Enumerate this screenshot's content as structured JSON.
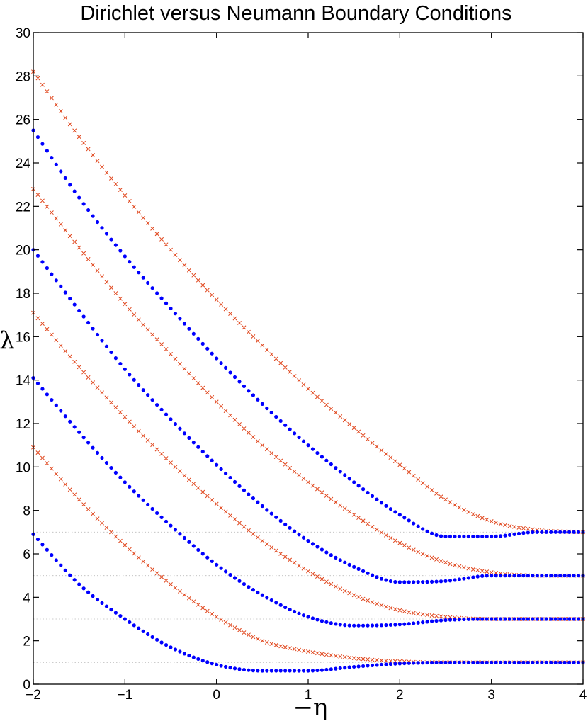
{
  "chart_data": {
    "type": "scatter",
    "title": "Dirichlet versus Neumann Boundary Conditions",
    "xlabel": "−η",
    "ylabel": "λ",
    "xlim": [
      -2,
      4
    ],
    "ylim": [
      0,
      30
    ],
    "xticks": [
      "−2",
      "−1",
      "0",
      "1",
      "2",
      "3",
      "4"
    ],
    "yticks": [
      "0",
      "2",
      "4",
      "6",
      "8",
      "10",
      "12",
      "14",
      "16",
      "18",
      "20",
      "22",
      "24",
      "26",
      "28",
      "30"
    ],
    "reference_lines": [
      1,
      3,
      5,
      7
    ],
    "series": [
      {
        "name": "Dirichlet",
        "marker": "dot",
        "color": "#0000ff",
        "curves": [
          {
            "x": [
              -2,
              -1.5,
              -1,
              -0.5,
              0,
              0.5,
              1,
              1.5,
              2,
              2.5,
              3,
              3.5,
              4
            ],
            "y": [
              6.9,
              4.6,
              3.0,
              1.7,
              0.9,
              0.62,
              0.62,
              0.8,
              0.95,
              1.0,
              1.0,
              1.0,
              1.0
            ]
          },
          {
            "x": [
              -2,
              -1.5,
              -1,
              -0.5,
              0,
              0.5,
              1,
              1.5,
              2,
              2.5,
              3,
              3.5,
              4
            ],
            "y": [
              14.1,
              11.6,
              9.3,
              7.3,
              5.5,
              4.1,
              3.1,
              2.7,
              2.75,
              2.95,
              3.0,
              3.0,
              3.0
            ]
          },
          {
            "x": [
              -2,
              -1.5,
              -1,
              -0.5,
              0,
              0.5,
              1,
              1.5,
              2,
              2.5,
              3,
              3.5,
              4
            ],
            "y": [
              20.0,
              17.2,
              14.5,
              12.2,
              10.1,
              8.2,
              6.6,
              5.4,
              4.7,
              4.75,
              5.0,
              5.0,
              5.0
            ]
          },
          {
            "x": [
              -2,
              -1.5,
              -1,
              -0.5,
              0,
              0.5,
              1,
              1.5,
              2,
              2.5,
              3,
              3.5,
              4
            ],
            "y": [
              25.5,
              22.4,
              19.7,
              17.3,
              15.0,
              12.9,
              11.0,
              9.3,
              7.8,
              6.8,
              6.8,
              7.0,
              7.0
            ]
          }
        ]
      },
      {
        "name": "Neumann",
        "marker": "x",
        "color": "#e0451b",
        "curves": [
          {
            "x": [
              -2,
              -1.5,
              -1,
              -0.5,
              0,
              0.5,
              1,
              1.5,
              2,
              2.5,
              3,
              3.5,
              4
            ],
            "y": [
              10.9,
              8.5,
              6.4,
              4.6,
              3.1,
              2.0,
              1.5,
              1.2,
              1.05,
              1.0,
              1.0,
              1.0,
              1.0
            ]
          },
          {
            "x": [
              -2,
              -1.5,
              -1,
              -0.5,
              0,
              0.5,
              1,
              1.5,
              2,
              2.5,
              3,
              3.5,
              4
            ],
            "y": [
              17.1,
              14.6,
              12.3,
              10.2,
              8.3,
              6.6,
              5.2,
              4.1,
              3.4,
              3.1,
              3.0,
              3.0,
              3.0
            ]
          },
          {
            "x": [
              -2,
              -1.5,
              -1,
              -0.5,
              0,
              0.5,
              1,
              1.5,
              2,
              2.5,
              3,
              3.5,
              4
            ],
            "y": [
              22.8,
              20.1,
              17.5,
              15.2,
              13.0,
              11.0,
              9.3,
              7.8,
              6.5,
              5.6,
              5.15,
              5.0,
              5.0
            ]
          },
          {
            "x": [
              -2,
              -1.5,
              -1,
              -0.5,
              0,
              0.5,
              1,
              1.5,
              2,
              2.5,
              3,
              3.5,
              4
            ],
            "y": [
              28.2,
              25.2,
              22.5,
              20.0,
              17.7,
              15.6,
              13.6,
              11.8,
              10.1,
              8.5,
              7.5,
              7.1,
              7.0
            ]
          }
        ]
      }
    ]
  }
}
